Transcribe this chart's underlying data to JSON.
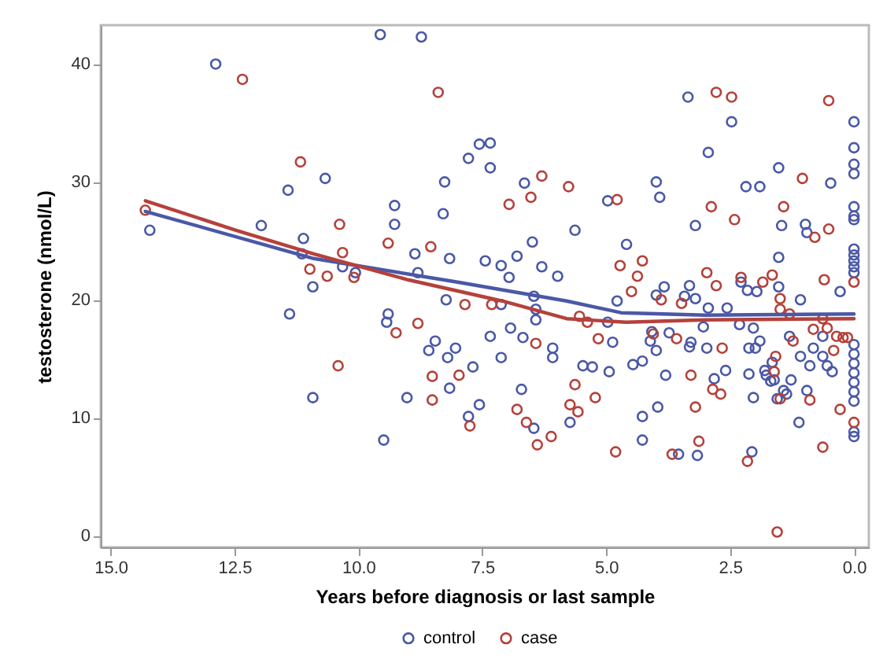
{
  "chart_data": {
    "type": "scatter",
    "xlabel": "Years before diagnosis or last sample",
    "ylabel": "testosterone (nmol/L)",
    "xlim": [
      15.2,
      -0.3
    ],
    "ylim": [
      -1,
      43.3
    ],
    "xticks": [
      {
        "value": 15,
        "label": "15.0"
      },
      {
        "value": 12.5,
        "label": "12.5"
      },
      {
        "value": 10,
        "label": "10.0"
      },
      {
        "value": 7.5,
        "label": "7.5"
      },
      {
        "value": 5,
        "label": "5.0"
      },
      {
        "value": 2.5,
        "label": "2.5"
      },
      {
        "value": 0,
        "label": "0.0"
      }
    ],
    "yticks": [
      0,
      10,
      20,
      30,
      40
    ],
    "legend": "bottom",
    "series": [
      {
        "name": "control",
        "marker": "circle",
        "color": "#4a58a6",
        "x": [
          14.21,
          12.88,
          11.96,
          11.42,
          11.39,
          11.14,
          11.11,
          10.92,
          10.92,
          10.67,
          10.32,
          10.06,
          9.56,
          8.73,
          9.49,
          9.4,
          9.43,
          9.27,
          9.27,
          8.29,
          7.56,
          7.34,
          7.78,
          7.34,
          8.26,
          6.65,
          5.63,
          6.49,
          8.86,
          8.16,
          7.44,
          7.12,
          6.8,
          6.3,
          5.98,
          6.96,
          8.8,
          8.23,
          7.12,
          6.46,
          6.42,
          6.42,
          8.45,
          8.58,
          8.04,
          8.2,
          7.34,
          7.12,
          6.93,
          6.68,
          6.08,
          6.08,
          7.69,
          8.16,
          9.02,
          7.56,
          7.78,
          6.46,
          6.71,
          5.73,
          5.47,
          5.28,
          3.35,
          2.47,
          0,
          0,
          0,
          0,
          2.94,
          1.52,
          0.47,
          2.18,
          1.9,
          3.99,
          3.92,
          4.97,
          0,
          0,
          0,
          1.46,
          0.98,
          0.95,
          3.2,
          4.59,
          1.52,
          0,
          0,
          0,
          0,
          0,
          2.28,
          2.15,
          1.96,
          1.52,
          1.08,
          0.28,
          3.83,
          3.99,
          4.78,
          3.32,
          3.42,
          3.2,
          2.94,
          2.56,
          4.97,
          4.08,
          4.11,
          3.73,
          3.99,
          3.29,
          3.32,
          3.04,
          2.97,
          2.31,
          2.03,
          1.9,
          2.12,
          1.99,
          1.3,
          0.63,
          0.82,
          1.08,
          0.63,
          0.54,
          0.44,
          0.89,
          0,
          0,
          0,
          0,
          0,
          0,
          0,
          0,
          0,
          1.11,
          0.95,
          1.27,
          1.42,
          1.36,
          1.55,
          1.8,
          1.77,
          1.65,
          1.61,
          1.68,
          2.03,
          2.12,
          2.59,
          2.82,
          3.16,
          3.54,
          3.96,
          4.27,
          4.27,
          4.46,
          4.27,
          3.8,
          4.94,
          2.06,
          4.87
        ],
        "values": [
          25.9,
          40.0,
          26.3,
          29.3,
          18.8,
          23.9,
          25.2,
          21.1,
          11.7,
          30.3,
          22.8,
          22.3,
          42.5,
          42.3,
          8.1,
          18.8,
          18.1,
          28.0,
          26.4,
          27.3,
          33.2,
          33.3,
          32.0,
          31.2,
          30.0,
          29.9,
          25.9,
          24.9,
          23.9,
          23.5,
          23.3,
          22.9,
          23.7,
          22.8,
          22.0,
          21.9,
          22.3,
          20.0,
          19.6,
          20.3,
          19.2,
          18.3,
          16.5,
          15.7,
          15.9,
          15.1,
          16.9,
          15.1,
          17.6,
          16.8,
          15.9,
          15.1,
          14.3,
          12.5,
          11.7,
          11.1,
          10.1,
          9.1,
          12.4,
          9.6,
          14.4,
          14.3,
          37.2,
          35.1,
          35.1,
          32.9,
          31.5,
          30.7,
          32.5,
          31.2,
          29.9,
          29.6,
          29.6,
          30.0,
          28.7,
          28.4,
          27.9,
          27.1,
          26.8,
          26.3,
          26.4,
          25.7,
          26.3,
          24.7,
          23.6,
          24.3,
          23.8,
          23.3,
          22.8,
          22.3,
          21.5,
          20.8,
          20.7,
          21.1,
          20.0,
          20.7,
          21.1,
          20.4,
          19.9,
          21.2,
          20.3,
          20.1,
          19.3,
          19.3,
          18.1,
          17.3,
          16.5,
          17.2,
          15.7,
          16.4,
          16.0,
          17.7,
          15.9,
          17.9,
          17.6,
          16.5,
          15.9,
          15.9,
          16.9,
          16.9,
          15.9,
          15.2,
          15.2,
          14.4,
          13.9,
          14.4,
          16.2,
          15.4,
          14.6,
          13.8,
          13.0,
          12.2,
          11.4,
          8.8,
          8.4,
          9.6,
          12.3,
          13.2,
          12.3,
          12.0,
          11.6,
          14.0,
          13.6,
          14.7,
          13.2,
          13.1,
          11.7,
          13.7,
          14.0,
          13.3,
          6.8,
          6.9,
          10.9,
          10.1,
          8.1,
          14.5,
          14.8,
          13.6,
          13.9,
          7.1,
          16.4
        ]
      },
      {
        "name": "case",
        "marker": "circle",
        "color": "#b5413b",
        "x": [
          14.3,
          12.34,
          11.17,
          8.39,
          6.3,
          5.76,
          6.96,
          6.52,
          10.38,
          10.32,
          9.4,
          8.54,
          10.98,
          10.63,
          10.09,
          7.85,
          7.31,
          5.54,
          5.38,
          9.24,
          8.8,
          6.42,
          7.97,
          8.51,
          8.51,
          10.41,
          7.75,
          6.8,
          6.61,
          6.39,
          6.11,
          5.73,
          5.57,
          5.63,
          5.22,
          2.78,
          2.47,
          0.51,
          1.04,
          4.78,
          2.88,
          1.42,
          2.41,
          0.79,
          0.51,
          4.72,
          4.27,
          4.37,
          4.49,
          2.97,
          2.78,
          2.28,
          1.65,
          1.84,
          0.6,
          0,
          3.48,
          1.49,
          3.89,
          1.49,
          1.3,
          4.05,
          3.58,
          2.66,
          1.58,
          1.23,
          0.82,
          0.63,
          0.54,
          0.35,
          0.22,
          0.13,
          0.41,
          0,
          0.28,
          0.63,
          0.89,
          1.49,
          1.61,
          2.85,
          2.69,
          3.29,
          3.2,
          3.13,
          3.67,
          4.81,
          2.15,
          1.55,
          5.16
        ],
        "values": [
          27.6,
          38.7,
          31.7,
          37.6,
          30.5,
          29.6,
          28.1,
          28.7,
          26.4,
          24.0,
          24.8,
          24.5,
          22.6,
          22.0,
          21.9,
          19.6,
          19.6,
          18.6,
          18.1,
          17.2,
          18.0,
          16.3,
          13.6,
          13.5,
          11.5,
          14.4,
          9.3,
          10.7,
          9.6,
          7.7,
          8.4,
          11.1,
          10.5,
          12.8,
          11.7,
          37.6,
          37.2,
          36.9,
          30.3,
          28.5,
          27.9,
          27.9,
          26.8,
          25.3,
          26.0,
          22.9,
          23.3,
          22.0,
          20.7,
          22.3,
          21.2,
          21.9,
          22.1,
          21.5,
          21.7,
          21.5,
          19.7,
          20.1,
          20.0,
          19.2,
          18.8,
          17.1,
          16.7,
          15.9,
          15.2,
          16.5,
          17.5,
          18.4,
          17.6,
          16.9,
          16.8,
          16.8,
          15.7,
          9.6,
          10.7,
          7.5,
          11.5,
          11.6,
          13.9,
          12.4,
          12.0,
          13.6,
          10.9,
          8.0,
          6.9,
          7.1,
          6.3,
          0.3,
          16.7
        ]
      },
      {
        "type": "line",
        "marker": "none",
        "color": "#4a58a6",
        "x": [
          14.3,
          10.9,
          8.0,
          5.8,
          4.7,
          3.0,
          0
        ],
        "values": [
          27.5,
          23.5,
          21.5,
          19.9,
          18.9,
          18.7,
          18.8
        ]
      },
      {
        "type": "line",
        "marker": "none",
        "color": "#b5413b",
        "x": [
          14.3,
          12.47,
          10.9,
          9.0,
          7.1,
          5.8,
          4.6,
          3.0,
          0
        ],
        "values": [
          28.4,
          25.9,
          23.9,
          21.7,
          19.9,
          18.4,
          18.1,
          18.3,
          18.4
        ]
      }
    ]
  }
}
